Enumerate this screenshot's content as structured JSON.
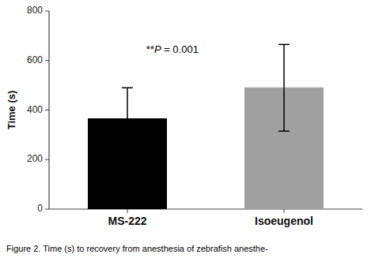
{
  "chart_data": {
    "type": "bar",
    "categories": [
      "MS-222",
      "Isoeugenol"
    ],
    "values": [
      365,
      490
    ],
    "errors_upper": [
      125,
      175
    ],
    "errors_lower": [
      130,
      175
    ],
    "colors": [
      "#000000",
      "#a0a0a0"
    ],
    "ylabel": "Time (s)",
    "ylim": [
      0,
      800
    ],
    "yticks": [
      0,
      200,
      400,
      600,
      800
    ],
    "annotation": "**P = 0.001",
    "caption": "Figure 2.  Time (s) to recovery from anesthesia of zebrafish anesthe-"
  }
}
